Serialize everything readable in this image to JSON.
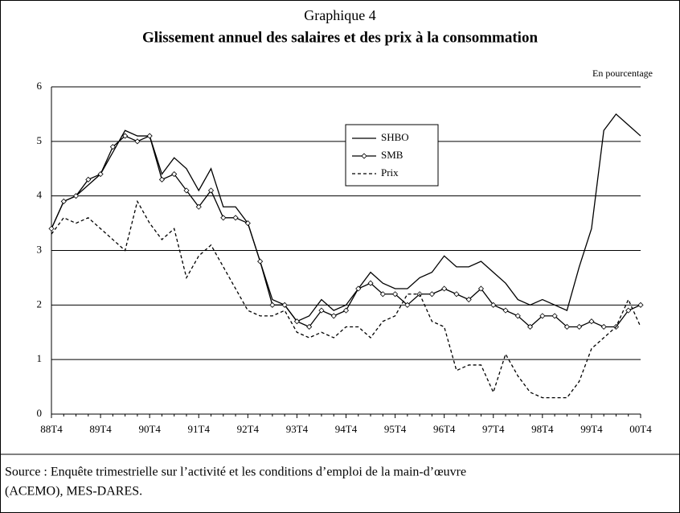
{
  "chart_data": {
    "type": "line",
    "title": "Graphique 4",
    "subtitle": "Glissement annuel des salaires et des prix à la consommation",
    "y_unit_label": "En pourcentage",
    "categories": [
      "88T4",
      null,
      null,
      null,
      "89T4",
      null,
      null,
      null,
      "90T4",
      null,
      null,
      null,
      "91T4",
      null,
      null,
      null,
      "92T4",
      null,
      null,
      null,
      "93T4",
      null,
      null,
      null,
      "94T4",
      null,
      null,
      null,
      "95T4",
      null,
      null,
      null,
      "96T4",
      null,
      null,
      null,
      "97T4",
      null,
      null,
      null,
      "98T4",
      null,
      null,
      null,
      "99T4",
      null,
      null,
      null,
      "00T4"
    ],
    "series": [
      {
        "name": "SHBO",
        "color": "#000000",
        "dash": false,
        "marker": false,
        "values": [
          3.4,
          3.9,
          4.0,
          4.2,
          4.4,
          4.8,
          5.2,
          5.1,
          5.1,
          4.4,
          4.7,
          4.5,
          4.1,
          4.5,
          3.8,
          3.8,
          3.5,
          2.8,
          2.1,
          2.0,
          1.7,
          1.8,
          2.1,
          1.9,
          2.0,
          2.3,
          2.6,
          2.4,
          2.3,
          2.3,
          2.5,
          2.6,
          2.9,
          2.7,
          2.7,
          2.8,
          2.6,
          2.4,
          2.1,
          2.0,
          2.1,
          2.0,
          1.9,
          2.7,
          3.4,
          5.2,
          5.5,
          5.3,
          5.1
        ]
      },
      {
        "name": "SMB",
        "color": "#000000",
        "dash": false,
        "marker": true,
        "values": [
          3.4,
          3.9,
          4.0,
          4.3,
          4.4,
          4.9,
          5.1,
          5.0,
          5.1,
          4.3,
          4.4,
          4.1,
          3.8,
          4.1,
          3.6,
          3.6,
          3.5,
          2.8,
          2.0,
          2.0,
          1.7,
          1.6,
          1.9,
          1.8,
          1.9,
          2.3,
          2.4,
          2.2,
          2.2,
          2.0,
          2.2,
          2.2,
          2.3,
          2.2,
          2.1,
          2.3,
          2.0,
          1.9,
          1.8,
          1.6,
          1.8,
          1.8,
          1.6,
          1.6,
          1.7,
          1.6,
          1.6,
          1.9,
          2.0
        ]
      },
      {
        "name": "Prix",
        "color": "#000000",
        "dash": true,
        "marker": false,
        "values": [
          3.3,
          3.6,
          3.5,
          3.6,
          3.4,
          3.2,
          3.0,
          3.9,
          3.5,
          3.2,
          3.4,
          2.5,
          2.9,
          3.1,
          2.7,
          2.3,
          1.9,
          1.8,
          1.8,
          1.9,
          1.5,
          1.4,
          1.5,
          1.4,
          1.6,
          1.6,
          1.4,
          1.7,
          1.8,
          2.2,
          2.2,
          1.7,
          1.6,
          0.8,
          0.9,
          0.9,
          0.4,
          1.1,
          0.7,
          0.4,
          0.3,
          0.3,
          0.3,
          0.6,
          1.2,
          1.4,
          1.6,
          2.1,
          1.6
        ]
      }
    ],
    "ylim": [
      0,
      6
    ],
    "yticks": [
      0,
      1,
      2,
      3,
      4,
      5,
      6
    ],
    "grid": true,
    "source": [
      "Source : Enquête trimestrielle sur l’activité et les conditions d’emploi de la main-d’œuvre",
      "(ACEMO), MES-DARES."
    ]
  }
}
